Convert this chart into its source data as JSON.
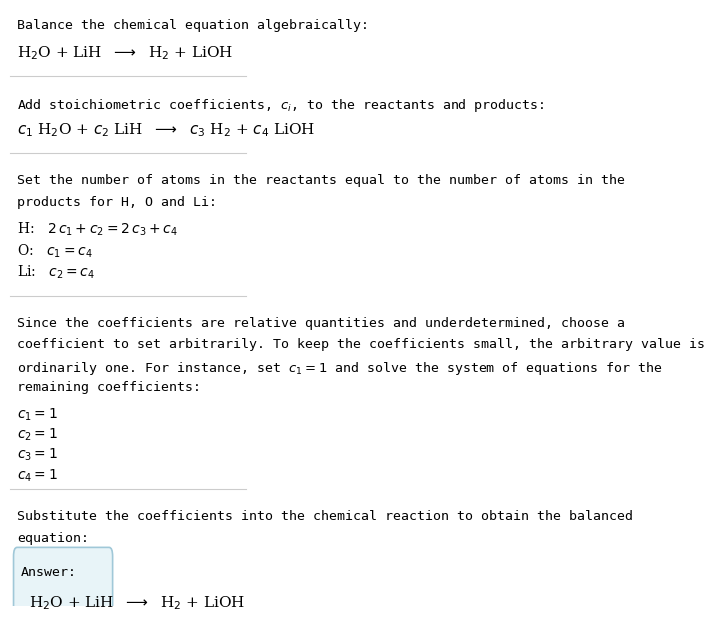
{
  "bg_color": "#ffffff",
  "text_color": "#000000",
  "answer_box_color": "#e8f4f8",
  "answer_box_edge": "#a0c8d8",
  "fig_width": 5.29,
  "fig_height": 6.07,
  "separator_color": "#cccccc",
  "section1_line1": "Balance the chemical equation algebraically:",
  "section1_line2": "H$_2$O + LiH  $\\longrightarrow$  H$_2$ + LiOH",
  "section2_line1": "Add stoichiometric coefficients, $c_i$, to the reactants and products:",
  "section2_line2": "$c_1$ H$_2$O + $c_2$ LiH  $\\longrightarrow$  $c_3$ H$_2$ + $c_4$ LiOH",
  "section3_line1": "Set the number of atoms in the reactants equal to the number of atoms in the",
  "section3_line2": "products for H, O and Li:",
  "section3_H": "H:   $2\\,c_1 + c_2 = 2\\,c_3 + c_4$",
  "section3_O": "O:   $c_1 = c_4$",
  "section3_Li": "Li:   $c_2 = c_4$",
  "section4_line1": "Since the coefficients are relative quantities and underdetermined, choose a",
  "section4_line2": "coefficient to set arbitrarily. To keep the coefficients small, the arbitrary value is",
  "section4_line3": "ordinarily one. For instance, set $c_1 = 1$ and solve the system of equations for the",
  "section4_line4": "remaining coefficients:",
  "section4_c1": "$c_1 = 1$",
  "section4_c2": "$c_2 = 1$",
  "section4_c3": "$c_3 = 1$",
  "section4_c4": "$c_4 = 1$",
  "section5_line1": "Substitute the coefficients into the chemical reaction to obtain the balanced",
  "section5_line2": "equation:",
  "answer_label": "Answer:",
  "answer_eq": "H$_2$O + LiH  $\\longrightarrow$  H$_2$ + LiOH"
}
